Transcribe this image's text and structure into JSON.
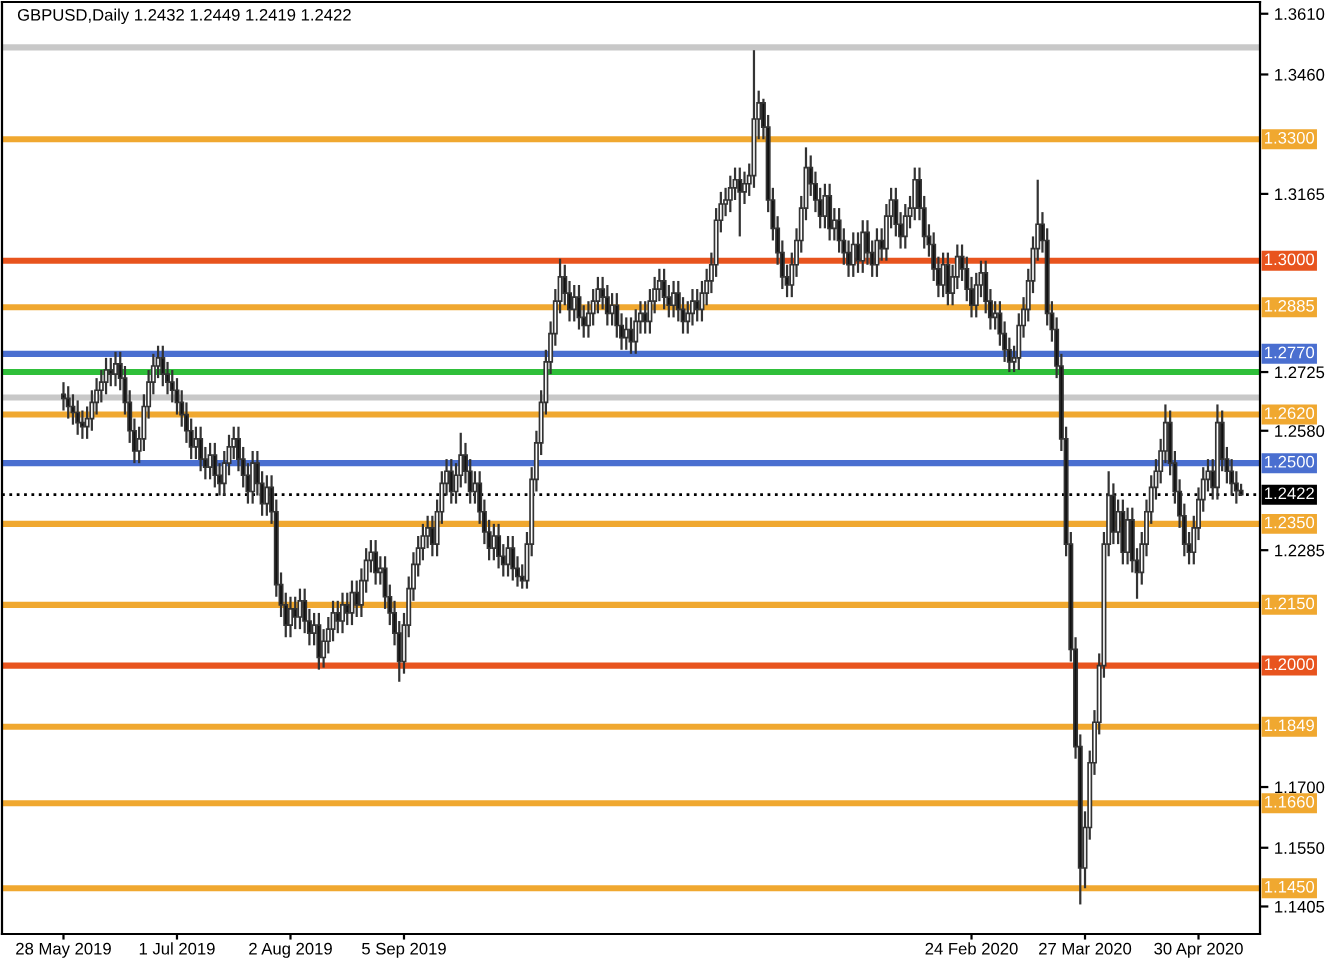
{
  "chart_data": {
    "type": "candlestick",
    "title": "GBPUSD,Daily 1.2432 1.2449 1.2419 1.2422",
    "categories": [
      "28 May 2019",
      null,
      null,
      null,
      null,
      null,
      null,
      null,
      null,
      null,
      null,
      null,
      null,
      null,
      null,
      null,
      null,
      null,
      null,
      null,
      null,
      null,
      null,
      null,
      "1 Jul 2019",
      null,
      null,
      null,
      null,
      null,
      null,
      null,
      null,
      null,
      null,
      null,
      null,
      null,
      null,
      null,
      null,
      null,
      null,
      null,
      null,
      null,
      null,
      null,
      "2 Aug 2019",
      null,
      null,
      null,
      null,
      null,
      null,
      null,
      null,
      null,
      null,
      null,
      null,
      null,
      null,
      null,
      null,
      null,
      null,
      null,
      null,
      null,
      null,
      null,
      "5 Sep 2019",
      null,
      null,
      null,
      null,
      null,
      null,
      null,
      null,
      null,
      null,
      null,
      null,
      null,
      null,
      null,
      null,
      null,
      null,
      null,
      null,
      null,
      null,
      null,
      null,
      null,
      null,
      null,
      null,
      null,
      null,
      null,
      null,
      null,
      null,
      null,
      null,
      null,
      null,
      null,
      null,
      null,
      null,
      null,
      null,
      null,
      null,
      null,
      null,
      null,
      null,
      null,
      null,
      null,
      null,
      null,
      null,
      null,
      null,
      null,
      null,
      null,
      null,
      null,
      null,
      null,
      null,
      null,
      null,
      null,
      null,
      null,
      null,
      null,
      null,
      null,
      null,
      null,
      null,
      null,
      null,
      null,
      null,
      null,
      null,
      null,
      null,
      null,
      null,
      null,
      null,
      null,
      null,
      null,
      null,
      null,
      null,
      null,
      null,
      null,
      null,
      null,
      null,
      null,
      null,
      null,
      null,
      null,
      null,
      null,
      null,
      null,
      null,
      null,
      null,
      null,
      null,
      null,
      null,
      null,
      "24 Feb 2020",
      null,
      null,
      null,
      null,
      null,
      null,
      null,
      null,
      null,
      null,
      null,
      null,
      null,
      null,
      null,
      null,
      null,
      null,
      null,
      null,
      null,
      null,
      null,
      "27 Mar 2020",
      null,
      null,
      null,
      null,
      null,
      null,
      null,
      null,
      null,
      null,
      null,
      null,
      null,
      null,
      null,
      null,
      null,
      null,
      null,
      null,
      null,
      null,
      null,
      "30 Apr 2020",
      null,
      null,
      null,
      null,
      null,
      null,
      null,
      null,
      null
    ],
    "ohlc": [
      [
        1.267,
        1.27,
        1.263,
        1.266
      ],
      [
        1.266,
        1.269,
        1.261,
        1.264
      ],
      [
        1.264,
        1.267,
        1.2595,
        1.2625
      ],
      [
        1.2625,
        1.2655,
        1.257,
        1.26
      ],
      [
        1.26,
        1.263,
        1.256,
        1.259
      ],
      [
        1.259,
        1.264,
        1.256,
        1.261
      ],
      [
        1.261,
        1.268,
        1.258,
        1.265
      ],
      [
        1.265,
        1.271,
        1.262,
        1.268
      ],
      [
        1.268,
        1.273,
        1.265,
        1.27
      ],
      [
        1.27,
        1.276,
        1.267,
        1.273
      ],
      [
        1.273,
        1.276,
        1.269,
        1.272
      ],
      [
        1.272,
        1.2775,
        1.269,
        1.2745
      ],
      [
        1.2745,
        1.2775,
        1.268,
        1.271
      ],
      [
        1.271,
        1.274,
        1.262,
        1.265
      ],
      [
        1.265,
        1.268,
        1.255,
        1.258
      ],
      [
        1.258,
        1.261,
        1.25,
        1.253
      ],
      [
        1.253,
        1.259,
        1.25,
        1.256
      ],
      [
        1.256,
        1.267,
        1.253,
        1.264
      ],
      [
        1.264,
        1.273,
        1.261,
        1.27
      ],
      [
        1.27,
        1.277,
        1.267,
        1.274
      ],
      [
        1.274,
        1.279,
        1.271,
        1.276
      ],
      [
        1.276,
        1.279,
        1.269,
        1.272
      ],
      [
        1.272,
        1.275,
        1.267,
        1.27
      ],
      [
        1.27,
        1.273,
        1.265,
        1.268
      ],
      [
        1.268,
        1.271,
        1.262,
        1.265
      ],
      [
        1.265,
        1.268,
        1.259,
        1.262
      ],
      [
        1.262,
        1.265,
        1.255,
        1.258
      ],
      [
        1.258,
        1.261,
        1.251,
        1.254
      ],
      [
        1.254,
        1.259,
        1.251,
        1.256
      ],
      [
        1.256,
        1.259,
        1.248,
        1.251
      ],
      [
        1.251,
        1.254,
        1.246,
        1.249
      ],
      [
        1.249,
        1.255,
        1.246,
        1.252
      ],
      [
        1.252,
        1.255,
        1.244,
        1.247
      ],
      [
        1.247,
        1.25,
        1.242,
        1.245
      ],
      [
        1.245,
        1.253,
        1.242,
        1.25
      ],
      [
        1.25,
        1.257,
        1.247,
        1.254
      ],
      [
        1.254,
        1.259,
        1.251,
        1.256
      ],
      [
        1.256,
        1.259,
        1.248,
        1.251
      ],
      [
        1.251,
        1.254,
        1.244,
        1.247
      ],
      [
        1.247,
        1.25,
        1.24,
        1.243
      ],
      [
        1.243,
        1.253,
        1.24,
        1.25
      ],
      [
        1.25,
        1.253,
        1.242,
        1.245
      ],
      [
        1.245,
        1.248,
        1.237,
        1.24
      ],
      [
        1.24,
        1.247,
        1.237,
        1.244
      ],
      [
        1.244,
        1.247,
        1.235,
        1.238
      ],
      [
        1.238,
        1.241,
        1.217,
        1.22
      ],
      [
        1.22,
        1.223,
        1.212,
        1.215
      ],
      [
        1.215,
        1.218,
        1.207,
        1.21
      ],
      [
        1.21,
        1.217,
        1.207,
        1.214
      ],
      [
        1.214,
        1.217,
        1.209,
        1.212
      ],
      [
        1.212,
        1.219,
        1.209,
        1.216
      ],
      [
        1.216,
        1.219,
        1.208,
        1.211
      ],
      [
        1.211,
        1.214,
        1.205,
        1.208
      ],
      [
        1.208,
        1.213,
        1.205,
        1.21
      ],
      [
        1.21,
        1.213,
        1.199,
        1.202
      ],
      [
        1.202,
        1.209,
        1.1995,
        1.206
      ],
      [
        1.206,
        1.212,
        1.203,
        1.209
      ],
      [
        1.209,
        1.216,
        1.206,
        1.213
      ],
      [
        1.213,
        1.216,
        1.208,
        1.211
      ],
      [
        1.211,
        1.218,
        1.208,
        1.215
      ],
      [
        1.215,
        1.218,
        1.21,
        1.213
      ],
      [
        1.213,
        1.221,
        1.21,
        1.218
      ],
      [
        1.218,
        1.221,
        1.212,
        1.215
      ],
      [
        1.215,
        1.224,
        1.212,
        1.221
      ],
      [
        1.221,
        1.229,
        1.218,
        1.226
      ],
      [
        1.226,
        1.231,
        1.223,
        1.228
      ],
      [
        1.228,
        1.231,
        1.22,
        1.223
      ],
      [
        1.223,
        1.227,
        1.22,
        1.224
      ],
      [
        1.224,
        1.227,
        1.214,
        1.217
      ],
      [
        1.217,
        1.22,
        1.21,
        1.213
      ],
      [
        1.213,
        1.216,
        1.205,
        1.208
      ],
      [
        1.208,
        1.211,
        1.196,
        1.201
      ],
      [
        1.201,
        1.213,
        1.198,
        1.21
      ],
      [
        1.21,
        1.222,
        1.207,
        1.219
      ],
      [
        1.219,
        1.228,
        1.216,
        1.225
      ],
      [
        1.225,
        1.232,
        1.222,
        1.229
      ],
      [
        1.229,
        1.235,
        1.226,
        1.232
      ],
      [
        1.232,
        1.237,
        1.229,
        1.234
      ],
      [
        1.234,
        1.237,
        1.227,
        1.23
      ],
      [
        1.23,
        1.241,
        1.227,
        1.238
      ],
      [
        1.238,
        1.248,
        1.235,
        1.245
      ],
      [
        1.245,
        1.251,
        1.242,
        1.248
      ],
      [
        1.248,
        1.251,
        1.24,
        1.243
      ],
      [
        1.243,
        1.25,
        1.24,
        1.247
      ],
      [
        1.247,
        1.2575,
        1.244,
        1.252
      ],
      [
        1.252,
        1.255,
        1.245,
        1.248
      ],
      [
        1.248,
        1.251,
        1.24,
        1.243
      ],
      [
        1.243,
        1.248,
        1.24,
        1.245
      ],
      [
        1.245,
        1.248,
        1.235,
        1.238
      ],
      [
        1.238,
        1.241,
        1.23,
        1.233
      ],
      [
        1.233,
        1.236,
        1.226,
        1.229
      ],
      [
        1.229,
        1.235,
        1.226,
        1.232
      ],
      [
        1.232,
        1.235,
        1.224,
        1.227
      ],
      [
        1.227,
        1.23,
        1.222,
        1.225
      ],
      [
        1.225,
        1.232,
        1.222,
        1.229
      ],
      [
        1.229,
        1.232,
        1.221,
        1.224
      ],
      [
        1.224,
        1.227,
        1.2195,
        1.222
      ],
      [
        1.222,
        1.225,
        1.219,
        1.221
      ],
      [
        1.221,
        1.233,
        1.219,
        1.23
      ],
      [
        1.23,
        1.249,
        1.227,
        1.246
      ],
      [
        1.246,
        1.258,
        1.243,
        1.255
      ],
      [
        1.255,
        1.268,
        1.252,
        1.265
      ],
      [
        1.265,
        1.278,
        1.262,
        1.275
      ],
      [
        1.275,
        1.285,
        1.272,
        1.282
      ],
      [
        1.282,
        1.293,
        1.279,
        1.29
      ],
      [
        1.29,
        1.3005,
        1.287,
        1.296
      ],
      [
        1.296,
        1.299,
        1.289,
        1.292
      ],
      [
        1.292,
        1.295,
        1.285,
        1.288
      ],
      [
        1.288,
        1.294,
        1.285,
        1.291
      ],
      [
        1.291,
        1.294,
        1.283,
        1.286
      ],
      [
        1.286,
        1.289,
        1.281,
        1.284
      ],
      [
        1.284,
        1.29,
        1.281,
        1.287
      ],
      [
        1.287,
        1.293,
        1.284,
        1.29
      ],
      [
        1.29,
        1.296,
        1.287,
        1.293
      ],
      [
        1.293,
        1.296,
        1.288,
        1.291
      ],
      [
        1.291,
        1.294,
        1.284,
        1.287
      ],
      [
        1.287,
        1.292,
        1.284,
        1.289
      ],
      [
        1.289,
        1.292,
        1.281,
        1.284
      ],
      [
        1.284,
        1.287,
        1.278,
        1.281
      ],
      [
        1.281,
        1.286,
        1.278,
        1.283
      ],
      [
        1.283,
        1.286,
        1.277,
        1.28
      ],
      [
        1.28,
        1.288,
        1.277,
        1.285
      ],
      [
        1.285,
        1.29,
        1.282,
        1.287
      ],
      [
        1.287,
        1.29,
        1.282,
        1.285
      ],
      [
        1.285,
        1.293,
        1.282,
        1.29
      ],
      [
        1.29,
        1.296,
        1.287,
        1.293
      ],
      [
        1.293,
        1.298,
        1.29,
        1.295
      ],
      [
        1.295,
        1.298,
        1.288,
        1.291
      ],
      [
        1.291,
        1.294,
        1.286,
        1.289
      ],
      [
        1.289,
        1.295,
        1.286,
        1.292
      ],
      [
        1.292,
        1.295,
        1.285,
        1.288
      ],
      [
        1.288,
        1.291,
        1.282,
        1.285
      ],
      [
        1.285,
        1.29,
        1.282,
        1.287
      ],
      [
        1.287,
        1.293,
        1.284,
        1.29
      ],
      [
        1.29,
        1.293,
        1.285,
        1.288
      ],
      [
        1.288,
        1.295,
        1.285,
        1.292
      ],
      [
        1.292,
        1.298,
        1.289,
        1.295
      ],
      [
        1.295,
        1.302,
        1.292,
        1.299
      ],
      [
        1.299,
        1.313,
        1.296,
        1.31
      ],
      [
        1.31,
        1.317,
        1.307,
        1.314
      ],
      [
        1.314,
        1.318,
        1.311,
        1.315
      ],
      [
        1.315,
        1.321,
        1.312,
        1.318
      ],
      [
        1.318,
        1.323,
        1.315,
        1.32
      ],
      [
        1.32,
        1.323,
        1.306,
        1.317
      ],
      [
        1.317,
        1.322,
        1.314,
        1.319
      ],
      [
        1.319,
        1.324,
        1.316,
        1.321
      ],
      [
        1.321,
        1.352,
        1.318,
        1.335
      ],
      [
        1.335,
        1.342,
        1.33,
        1.339
      ],
      [
        1.339,
        1.34,
        1.33,
        1.333
      ],
      [
        1.333,
        1.336,
        1.312,
        1.315
      ],
      [
        1.315,
        1.318,
        1.305,
        1.308
      ],
      [
        1.308,
        1.311,
        1.299,
        1.302
      ],
      [
        1.302,
        1.305,
        1.293,
        1.296
      ],
      [
        1.296,
        1.299,
        1.291,
        1.294
      ],
      [
        1.294,
        1.302,
        1.291,
        1.299
      ],
      [
        1.299,
        1.308,
        1.296,
        1.305
      ],
      [
        1.305,
        1.316,
        1.302,
        1.313
      ],
      [
        1.313,
        1.328,
        1.31,
        1.323
      ],
      [
        1.323,
        1.326,
        1.316,
        1.319
      ],
      [
        1.319,
        1.322,
        1.312,
        1.315
      ],
      [
        1.315,
        1.318,
        1.308,
        1.311
      ],
      [
        1.311,
        1.319,
        1.308,
        1.316
      ],
      [
        1.316,
        1.319,
        1.305,
        1.308
      ],
      [
        1.308,
        1.313,
        1.305,
        1.31
      ],
      [
        1.31,
        1.313,
        1.302,
        1.305
      ],
      [
        1.305,
        1.308,
        1.299,
        1.302
      ],
      [
        1.302,
        1.305,
        1.296,
        1.299
      ],
      [
        1.299,
        1.307,
        1.296,
        1.304
      ],
      [
        1.304,
        1.307,
        1.297,
        1.3
      ],
      [
        1.3,
        1.31,
        1.297,
        1.307
      ],
      [
        1.307,
        1.31,
        1.299,
        1.302
      ],
      [
        1.302,
        1.305,
        1.296,
        1.299
      ],
      [
        1.299,
        1.308,
        1.296,
        1.305
      ],
      [
        1.305,
        1.308,
        1.3,
        1.303
      ],
      [
        1.303,
        1.314,
        1.3,
        1.311
      ],
      [
        1.311,
        1.318,
        1.308,
        1.315
      ],
      [
        1.315,
        1.318,
        1.306,
        1.309
      ],
      [
        1.309,
        1.312,
        1.303,
        1.306
      ],
      [
        1.306,
        1.314,
        1.303,
        1.311
      ],
      [
        1.311,
        1.316,
        1.308,
        1.313
      ],
      [
        1.313,
        1.323,
        1.31,
        1.32
      ],
      [
        1.32,
        1.323,
        1.31,
        1.313
      ],
      [
        1.313,
        1.316,
        1.303,
        1.306
      ],
      [
        1.306,
        1.309,
        1.301,
        1.304
      ],
      [
        1.304,
        1.307,
        1.295,
        1.298
      ],
      [
        1.298,
        1.301,
        1.291,
        1.294
      ],
      [
        1.294,
        1.302,
        1.291,
        1.299
      ],
      [
        1.299,
        1.302,
        1.289,
        1.292
      ],
      [
        1.292,
        1.299,
        1.289,
        1.296
      ],
      [
        1.296,
        1.304,
        1.293,
        1.301
      ],
      [
        1.301,
        1.304,
        1.295,
        1.298
      ],
      [
        1.298,
        1.301,
        1.29,
        1.293
      ],
      [
        1.293,
        1.296,
        1.286,
        1.289
      ],
      [
        1.289,
        1.297,
        1.286,
        1.294
      ],
      [
        1.294,
        1.3,
        1.291,
        1.297
      ],
      [
        1.297,
        1.3,
        1.287,
        1.29
      ],
      [
        1.29,
        1.293,
        1.283,
        1.286
      ],
      [
        1.286,
        1.29,
        1.283,
        1.287
      ],
      [
        1.287,
        1.29,
        1.279,
        1.282
      ],
      [
        1.282,
        1.285,
        1.275,
        1.278
      ],
      [
        1.278,
        1.281,
        1.2725,
        1.275
      ],
      [
        1.275,
        1.279,
        1.2725,
        1.276
      ],
      [
        1.276,
        1.287,
        1.273,
        1.284
      ],
      [
        1.284,
        1.291,
        1.281,
        1.288
      ],
      [
        1.288,
        1.298,
        1.285,
        1.295
      ],
      [
        1.295,
        1.306,
        1.292,
        1.303
      ],
      [
        1.303,
        1.32,
        1.3,
        1.309
      ],
      [
        1.309,
        1.312,
        1.302,
        1.305
      ],
      [
        1.305,
        1.308,
        1.284,
        1.287
      ],
      [
        1.287,
        1.29,
        1.28,
        1.283
      ],
      [
        1.283,
        1.286,
        1.271,
        1.274
      ],
      [
        1.274,
        1.277,
        1.253,
        1.256
      ],
      [
        1.256,
        1.259,
        1.227,
        1.23
      ],
      [
        1.23,
        1.233,
        1.201,
        1.204
      ],
      [
        1.204,
        1.207,
        1.177,
        1.18
      ],
      [
        1.18,
        1.183,
        1.141,
        1.15
      ],
      [
        1.15,
        1.164,
        1.145,
        1.16
      ],
      [
        1.16,
        1.179,
        1.157,
        1.176
      ],
      [
        1.176,
        1.189,
        1.173,
        1.186
      ],
      [
        1.186,
        1.203,
        1.183,
        1.2
      ],
      [
        1.2,
        1.233,
        1.197,
        1.23
      ],
      [
        1.23,
        1.248,
        1.227,
        1.242
      ],
      [
        1.242,
        1.245,
        1.23,
        1.233
      ],
      [
        1.233,
        1.241,
        1.23,
        1.238
      ],
      [
        1.238,
        1.241,
        1.225,
        1.228
      ],
      [
        1.228,
        1.239,
        1.225,
        1.236
      ],
      [
        1.236,
        1.239,
        1.223,
        1.226
      ],
      [
        1.226,
        1.229,
        1.2165,
        1.223
      ],
      [
        1.223,
        1.233,
        1.22,
        1.23
      ],
      [
        1.23,
        1.241,
        1.227,
        1.238
      ],
      [
        1.238,
        1.247,
        1.235,
        1.244
      ],
      [
        1.244,
        1.251,
        1.241,
        1.248
      ],
      [
        1.248,
        1.256,
        1.245,
        1.253
      ],
      [
        1.253,
        1.2645,
        1.25,
        1.26
      ],
      [
        1.26,
        1.263,
        1.247,
        1.25
      ],
      [
        1.25,
        1.253,
        1.24,
        1.243
      ],
      [
        1.243,
        1.246,
        1.234,
        1.237
      ],
      [
        1.237,
        1.24,
        1.227,
        1.23
      ],
      [
        1.23,
        1.233,
        1.225,
        1.228
      ],
      [
        1.228,
        1.237,
        1.225,
        1.234
      ],
      [
        1.234,
        1.244,
        1.231,
        1.241
      ],
      [
        1.241,
        1.249,
        1.238,
        1.246
      ],
      [
        1.246,
        1.251,
        1.243,
        1.248
      ],
      [
        1.248,
        1.251,
        1.241,
        1.244
      ],
      [
        1.244,
        1.2645,
        1.241,
        1.26
      ],
      [
        1.26,
        1.263,
        1.248,
        1.251
      ],
      [
        1.251,
        1.254,
        1.245,
        1.248
      ],
      [
        1.248,
        1.251,
        1.242,
        1.245
      ],
      [
        1.245,
        1.248,
        1.24,
        1.2432
      ],
      [
        1.2432,
        1.2449,
        1.2419,
        1.2422
      ]
    ],
    "ylim": [
      1.1337,
      1.3639
    ],
    "yticks": [
      {
        "value": 1.361,
        "label": "1.3610"
      },
      {
        "value": 1.346,
        "label": "1.3460"
      },
      {
        "value": 1.3165,
        "label": "1.3165"
      },
      {
        "value": 1.2725,
        "label": "1.2725"
      },
      {
        "value": 1.258,
        "label": "1.2580"
      },
      {
        "value": 1.2285,
        "label": "1.2285"
      },
      {
        "value": 1.17,
        "label": "1.1700"
      },
      {
        "value": 1.155,
        "label": "1.1550"
      },
      {
        "value": 1.1405,
        "label": "1.1405"
      }
    ],
    "ref_lines": [
      {
        "axis": "y",
        "value": 1.3527,
        "color": "#c8c8c8"
      },
      {
        "axis": "y",
        "value": 1.33,
        "label": "1.3300",
        "color": "#f0a830"
      },
      {
        "axis": "y",
        "value": 1.3,
        "label": "1.3000",
        "color": "#e8541e"
      },
      {
        "axis": "y",
        "value": 1.2885,
        "label": "1.2885",
        "color": "#f0a830"
      },
      {
        "axis": "y",
        "value": 1.277,
        "label": "1.2770",
        "color": "#4a6fd0"
      },
      {
        "axis": "y",
        "value": 1.2725,
        "color": "#2fbf3a"
      },
      {
        "axis": "y",
        "value": 1.2662,
        "color": "#c8c8c8"
      },
      {
        "axis": "y",
        "value": 1.262,
        "label": "1.2620",
        "color": "#f0a830"
      },
      {
        "axis": "y",
        "value": 1.25,
        "label": "1.2500",
        "color": "#4a6fd0"
      },
      {
        "axis": "y",
        "value": 1.2422,
        "label": "1.2422",
        "color": "#000000",
        "line_style": "dotted"
      },
      {
        "axis": "y",
        "value": 1.235,
        "label": "1.2350",
        "color": "#f0a830"
      },
      {
        "axis": "y",
        "value": 1.215,
        "label": "1.2150",
        "color": "#f0a830"
      },
      {
        "axis": "y",
        "value": 1.2,
        "label": "1.2000",
        "color": "#e8541e"
      },
      {
        "axis": "y",
        "value": 1.1849,
        "label": "1.1849",
        "color": "#f0a830"
      },
      {
        "axis": "y",
        "value": 1.166,
        "label": "1.1660",
        "color": "#f0a830"
      },
      {
        "axis": "y",
        "value": 1.145,
        "label": "1.1450",
        "color": "#f0a830"
      }
    ]
  }
}
